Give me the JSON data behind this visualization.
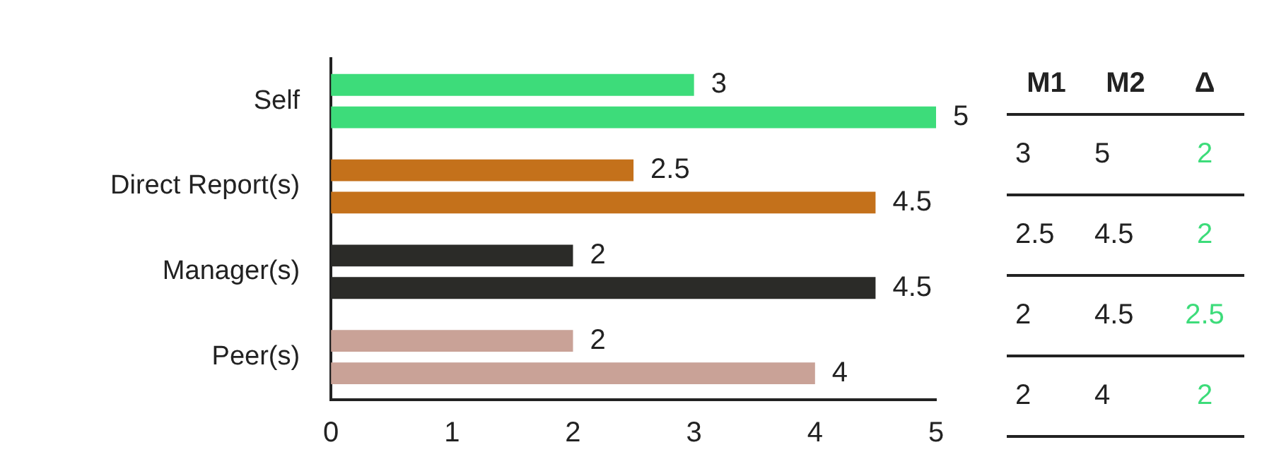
{
  "chart_data": [
    {
      "type": "bar",
      "orientation": "horizontal",
      "categories": [
        "Self",
        "Direct Report(s)",
        "Manager(s)",
        "Peer(s)"
      ],
      "series": [
        {
          "colors": [
            "#3ddc7a",
            "#c4711b",
            "#2b2b28",
            "#c9a297"
          ],
          "values": [
            3,
            2.5,
            2,
            2
          ]
        },
        {
          "colors": [
            "#3ddc7a",
            "#c4711b",
            "#2b2b28",
            "#c9a297"
          ],
          "values": [
            5,
            4.5,
            4.5,
            4
          ]
        }
      ],
      "xlim": [
        0,
        5
      ],
      "xticks": [
        0,
        1,
        2,
        3,
        4,
        5
      ],
      "grid": false,
      "legend": false,
      "data_labels": true
    },
    {
      "type": "other",
      "annotations": [
        "M1",
        "M2",
        "Δ",
        "3",
        "5",
        "2",
        "2.5",
        "4.5",
        "2",
        "2",
        "4.5",
        "2.5",
        "2",
        "4",
        "2"
      ]
    }
  ]
}
